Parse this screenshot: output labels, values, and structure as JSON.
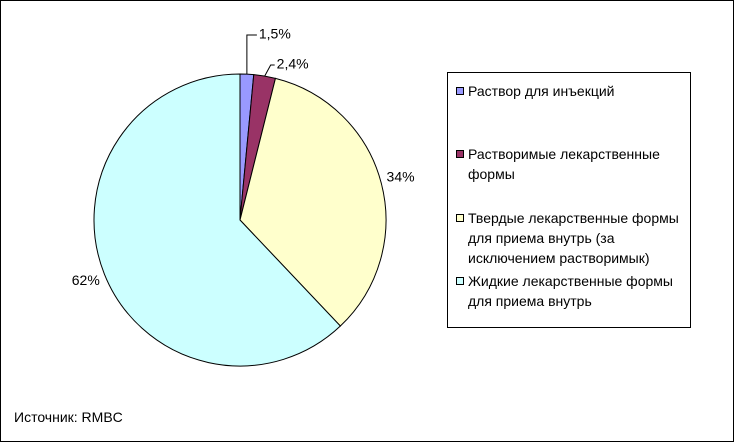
{
  "chart_data": {
    "type": "pie",
    "categories": [
      "Раствор для инъекций",
      "Растворимые лекарственные формы",
      "Твердые лекарственные формы для приема внутрь (за исключением растворимык)",
      "Жидкие лекарственные формы для приема внутрь"
    ],
    "values": [
      1.5,
      2.4,
      34,
      62
    ],
    "value_labels": [
      "1,5%",
      "2,4%",
      "34%",
      "62%"
    ],
    "colors": [
      "#9999ff",
      "#993366",
      "#ffffcc",
      "#ccffff"
    ],
    "legend": "right",
    "note": "Источник: RMBC"
  }
}
